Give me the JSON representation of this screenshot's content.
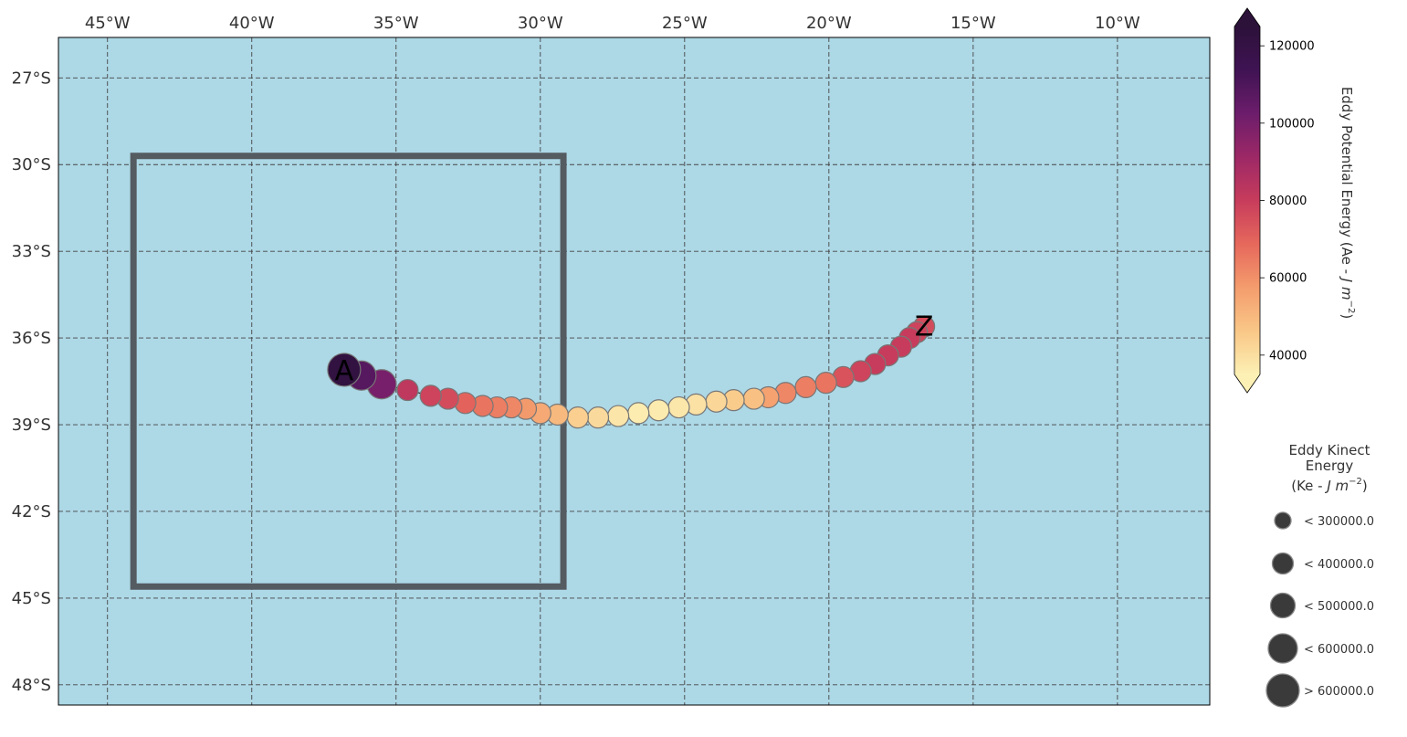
{
  "map": {
    "lon_range": [
      -46.7,
      -6.8
    ],
    "lat_range": [
      -48.7,
      -25.6
    ],
    "ocean_color": "#add8e6",
    "grid": true,
    "lon_ticks": [
      {
        "value": -45,
        "label": "45°W"
      },
      {
        "value": -40,
        "label": "40°W"
      },
      {
        "value": -35,
        "label": "35°W"
      },
      {
        "value": -30,
        "label": "30°W"
      },
      {
        "value": -25,
        "label": "25°W"
      },
      {
        "value": -20,
        "label": "20°W"
      },
      {
        "value": -15,
        "label": "15°W"
      },
      {
        "value": -10,
        "label": "10°W"
      }
    ],
    "lat_ticks": [
      {
        "value": -27,
        "label": "27°S"
      },
      {
        "value": -30,
        "label": "30°S"
      },
      {
        "value": -33,
        "label": "33°S"
      },
      {
        "value": -36,
        "label": "36°S"
      },
      {
        "value": -39,
        "label": "39°S"
      },
      {
        "value": -42,
        "label": "42°S"
      },
      {
        "value": -45,
        "label": "45°S"
      },
      {
        "value": -48,
        "label": "48°S"
      }
    ],
    "region_box": {
      "lon_min": -44.1,
      "lon_max": -29.2,
      "lat_min": -44.6,
      "lat_max": -29.7,
      "color": "#545b61"
    },
    "start_label": "A",
    "end_label": "Z"
  },
  "chart_data": {
    "type": "scatter",
    "x_label": "",
    "y_label": "",
    "track": [
      {
        "lon": -36.8,
        "lat": -37.1,
        "ape": 122000,
        "ke_class": 4
      },
      {
        "lon": -36.2,
        "lat": -37.3,
        "ape": 108000,
        "ke_class": 3
      },
      {
        "lon": -35.5,
        "lat": -37.6,
        "ape": 100000,
        "ke_class": 3
      },
      {
        "lon": -34.6,
        "lat": -37.8,
        "ape": 82000,
        "ke_class": 1
      },
      {
        "lon": -33.8,
        "lat": -38.0,
        "ape": 78000,
        "ke_class": 1
      },
      {
        "lon": -33.2,
        "lat": -38.1,
        "ape": 76000,
        "ke_class": 1
      },
      {
        "lon": -32.6,
        "lat": -38.25,
        "ape": 70000,
        "ke_class": 1
      },
      {
        "lon": -32.0,
        "lat": -38.35,
        "ape": 66000,
        "ke_class": 1
      },
      {
        "lon": -31.5,
        "lat": -38.4,
        "ape": 64000,
        "ke_class": 1
      },
      {
        "lon": -31.0,
        "lat": -38.4,
        "ape": 62000,
        "ke_class": 1
      },
      {
        "lon": -30.5,
        "lat": -38.45,
        "ape": 58000,
        "ke_class": 1
      },
      {
        "lon": -30.0,
        "lat": -38.6,
        "ape": 54000,
        "ke_class": 1
      },
      {
        "lon": -29.4,
        "lat": -38.65,
        "ape": 50000,
        "ke_class": 1
      },
      {
        "lon": -28.7,
        "lat": -38.75,
        "ape": 44000,
        "ke_class": 1
      },
      {
        "lon": -28.0,
        "lat": -38.75,
        "ape": 41000,
        "ke_class": 1
      },
      {
        "lon": -27.3,
        "lat": -38.7,
        "ape": 38000,
        "ke_class": 1
      },
      {
        "lon": -26.6,
        "lat": -38.6,
        "ape": 36000,
        "ke_class": 1
      },
      {
        "lon": -25.9,
        "lat": -38.5,
        "ape": 36500,
        "ke_class": 1
      },
      {
        "lon": -25.2,
        "lat": -38.4,
        "ape": 37500,
        "ke_class": 1
      },
      {
        "lon": -24.6,
        "lat": -38.3,
        "ape": 39000,
        "ke_class": 1
      },
      {
        "lon": -23.9,
        "lat": -38.2,
        "ape": 42000,
        "ke_class": 1
      },
      {
        "lon": -23.3,
        "lat": -38.15,
        "ape": 45000,
        "ke_class": 1
      },
      {
        "lon": -22.6,
        "lat": -38.1,
        "ape": 48000,
        "ke_class": 1
      },
      {
        "lon": -22.1,
        "lat": -38.05,
        "ape": 56000,
        "ke_class": 1
      },
      {
        "lon": -21.5,
        "lat": -37.9,
        "ape": 62000,
        "ke_class": 1
      },
      {
        "lon": -20.8,
        "lat": -37.7,
        "ape": 64000,
        "ke_class": 1
      },
      {
        "lon": -20.1,
        "lat": -37.55,
        "ape": 66000,
        "ke_class": 1
      },
      {
        "lon": -19.5,
        "lat": -37.35,
        "ape": 74000,
        "ke_class": 1
      },
      {
        "lon": -18.9,
        "lat": -37.15,
        "ape": 78000,
        "ke_class": 1
      },
      {
        "lon": -18.4,
        "lat": -36.9,
        "ape": 80000,
        "ke_class": 1
      },
      {
        "lon": -17.95,
        "lat": -36.6,
        "ape": 80000,
        "ke_class": 1
      },
      {
        "lon": -17.5,
        "lat": -36.3,
        "ape": 80000,
        "ke_class": 1
      },
      {
        "lon": -17.2,
        "lat": -36.0,
        "ape": 80000,
        "ke_class": 1
      },
      {
        "lon": -16.95,
        "lat": -35.8,
        "ape": 78000,
        "ke_class": 1
      },
      {
        "lon": -16.7,
        "lat": -35.6,
        "ape": 76000,
        "ke_class": 1
      }
    ]
  },
  "colorbar": {
    "label": "Eddy Potential Energy (Ae - ",
    "label_unit": "J m",
    "label_exp": "−2",
    "label_close": ")",
    "min": 35000,
    "max": 125000,
    "ticks": [
      {
        "value": 40000,
        "label": "40000"
      },
      {
        "value": 60000,
        "label": "60000"
      },
      {
        "value": 80000,
        "label": "80000"
      },
      {
        "value": 100000,
        "label": "100000"
      },
      {
        "value": 120000,
        "label": "120000"
      }
    ],
    "stops": [
      "#fcf0b4",
      "#f9c787",
      "#f49c6d",
      "#e6685c",
      "#c73c5c",
      "#9c2866",
      "#6c1d6b",
      "#3f1353",
      "#2c1139"
    ]
  },
  "size_legend": {
    "title_line1": "Eddy Kinect",
    "title_line2": "Energy",
    "title_line3_prefix": "(Ke -  ",
    "title_line3_unit": "J m",
    "title_line3_exp": "−2",
    "title_line3_suffix": ")",
    "entries": [
      {
        "label": "< 300000.0"
      },
      {
        "label": "< 400000.0"
      },
      {
        "label": "< 500000.0"
      },
      {
        "label": "< 600000.0"
      },
      {
        "label": "> 600000.0"
      }
    ],
    "marker_color": "#3a3a3a"
  }
}
